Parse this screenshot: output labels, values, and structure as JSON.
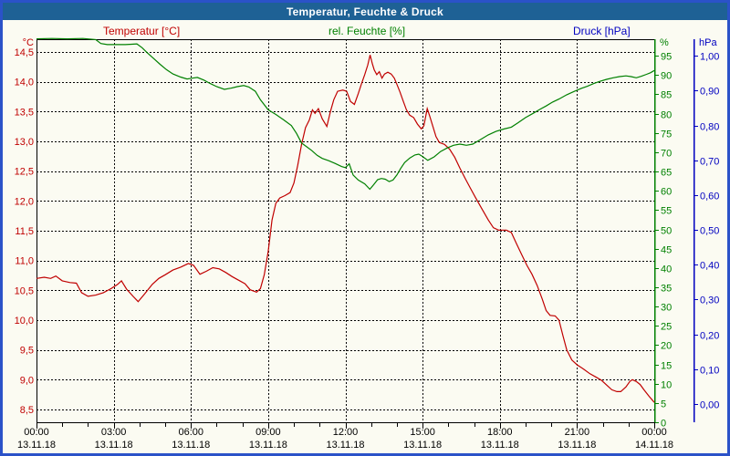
{
  "window": {
    "title": "Temperatur, Feuchte & Druck"
  },
  "legend": {
    "temperature": {
      "label": "Temperatur [°C]",
      "color": "#c00000"
    },
    "humidity": {
      "label": "rel. Feuchte [%]",
      "color": "#008000"
    },
    "pressure": {
      "label": "Druck [hPa]",
      "color": "#0000c0"
    }
  },
  "chart_data": {
    "type": "line",
    "title": "Temperatur, Feuchte & Druck",
    "grid": true,
    "x_axis": {
      "range_hours": [
        0,
        24
      ],
      "minor_tick_hours": 1,
      "major_ticks": [
        {
          "h": 0,
          "time": "00:00",
          "date": "13.11.18"
        },
        {
          "h": 3,
          "time": "03:00",
          "date": "13.11.18"
        },
        {
          "h": 6,
          "time": "06:00",
          "date": "13.11.18"
        },
        {
          "h": 9,
          "time": "09:00",
          "date": "13.11.18"
        },
        {
          "h": 12,
          "time": "12:00",
          "date": "13.11.18"
        },
        {
          "h": 15,
          "time": "15:00",
          "date": "13.11.18"
        },
        {
          "h": 18,
          "time": "18:00",
          "date": "13.11.18"
        },
        {
          "h": 21,
          "time": "21:00",
          "date": "13.11.18"
        },
        {
          "h": 24,
          "time": "00:00",
          "date": "14.11.18"
        }
      ]
    },
    "y_axes": {
      "temperature": {
        "unit_label": "°C",
        "color": "#c00000",
        "side": "left",
        "range": [
          8.2857,
          14.7143
        ],
        "gridlines": true,
        "ticks": [
          {
            "v": 14.5,
            "label": "14,5"
          },
          {
            "v": 14.0,
            "label": "14,0"
          },
          {
            "v": 13.5,
            "label": "13,5"
          },
          {
            "v": 13.0,
            "label": "13,0"
          },
          {
            "v": 12.5,
            "label": "12,5"
          },
          {
            "v": 12.0,
            "label": "12,0"
          },
          {
            "v": 11.5,
            "label": "11,5"
          },
          {
            "v": 11.0,
            "label": "11,0"
          },
          {
            "v": 10.5,
            "label": "10,5"
          },
          {
            "v": 10.0,
            "label": "10,0"
          },
          {
            "v": 9.5,
            "label": "9,5"
          },
          {
            "v": 9.0,
            "label": "9,0"
          },
          {
            "v": 8.5,
            "label": "8,5"
          }
        ]
      },
      "humidity": {
        "unit_label": "%",
        "color": "#008000",
        "side": "right",
        "range": [
          0,
          99.3
        ],
        "gridlines": false,
        "ticks": [
          {
            "v": 95,
            "label": "95"
          },
          {
            "v": 90,
            "label": "90"
          },
          {
            "v": 85,
            "label": "85"
          },
          {
            "v": 80,
            "label": "80"
          },
          {
            "v": 75,
            "label": "75"
          },
          {
            "v": 70,
            "label": "70"
          },
          {
            "v": 65,
            "label": "65"
          },
          {
            "v": 60,
            "label": "60"
          },
          {
            "v": 55,
            "label": "55"
          },
          {
            "v": 50,
            "label": "50"
          },
          {
            "v": 45,
            "label": "45"
          },
          {
            "v": 40,
            "label": "40"
          },
          {
            "v": 35,
            "label": "35"
          },
          {
            "v": 30,
            "label": "30"
          },
          {
            "v": 25,
            "label": "25"
          },
          {
            "v": 20,
            "label": "20"
          },
          {
            "v": 15,
            "label": "15"
          },
          {
            "v": 10,
            "label": "10"
          },
          {
            "v": 5,
            "label": "5"
          },
          {
            "v": 0,
            "label": "0"
          }
        ]
      },
      "pressure": {
        "unit_label": "hPa",
        "color": "#0000c0",
        "side": "far-right",
        "range": [
          -0.0524,
          1.0476
        ],
        "gridlines": false,
        "ticks": [
          {
            "v": 1.0,
            "label": "1,00"
          },
          {
            "v": 0.9,
            "label": "0,90"
          },
          {
            "v": 0.8,
            "label": "0,80"
          },
          {
            "v": 0.7,
            "label": "0,70"
          },
          {
            "v": 0.6,
            "label": "0,60"
          },
          {
            "v": 0.5,
            "label": "0,50"
          },
          {
            "v": 0.4,
            "label": "0,40"
          },
          {
            "v": 0.3,
            "label": "0,30"
          },
          {
            "v": 0.2,
            "label": "0,20"
          },
          {
            "v": 0.1,
            "label": "0,10"
          },
          {
            "v": 0.0,
            "label": "0,00"
          }
        ]
      }
    },
    "series": [
      {
        "name": "Temperatur [°C]",
        "axis": "temperature",
        "color": "#c00000",
        "points": [
          [
            0,
            10.7
          ],
          [
            0.3,
            10.72
          ],
          [
            0.55,
            10.7
          ],
          [
            0.75,
            10.74
          ],
          [
            1.0,
            10.66
          ],
          [
            1.3,
            10.63
          ],
          [
            1.55,
            10.62
          ],
          [
            1.75,
            10.46
          ],
          [
            2.0,
            10.4
          ],
          [
            2.3,
            10.42
          ],
          [
            2.6,
            10.46
          ],
          [
            2.9,
            10.53
          ],
          [
            3.15,
            10.6
          ],
          [
            3.3,
            10.66
          ],
          [
            3.5,
            10.52
          ],
          [
            3.75,
            10.4
          ],
          [
            3.95,
            10.31
          ],
          [
            4.2,
            10.44
          ],
          [
            4.5,
            10.6
          ],
          [
            4.75,
            10.7
          ],
          [
            5.0,
            10.76
          ],
          [
            5.3,
            10.84
          ],
          [
            5.6,
            10.89
          ],
          [
            5.9,
            10.95
          ],
          [
            6.1,
            10.92
          ],
          [
            6.35,
            10.77
          ],
          [
            6.6,
            10.82
          ],
          [
            6.85,
            10.88
          ],
          [
            7.1,
            10.86
          ],
          [
            7.35,
            10.8
          ],
          [
            7.6,
            10.73
          ],
          [
            7.85,
            10.67
          ],
          [
            8.1,
            10.61
          ],
          [
            8.3,
            10.51
          ],
          [
            8.55,
            10.47
          ],
          [
            8.7,
            10.53
          ],
          [
            8.85,
            10.76
          ],
          [
            9.0,
            11.15
          ],
          [
            9.15,
            11.68
          ],
          [
            9.3,
            11.96
          ],
          [
            9.45,
            12.05
          ],
          [
            9.65,
            12.09
          ],
          [
            9.85,
            12.14
          ],
          [
            10.0,
            12.3
          ],
          [
            10.15,
            12.6
          ],
          [
            10.3,
            12.95
          ],
          [
            10.45,
            13.23
          ],
          [
            10.6,
            13.36
          ],
          [
            10.72,
            13.53
          ],
          [
            10.82,
            13.47
          ],
          [
            10.95,
            13.55
          ],
          [
            11.1,
            13.38
          ],
          [
            11.28,
            13.25
          ],
          [
            11.42,
            13.5
          ],
          [
            11.55,
            13.7
          ],
          [
            11.7,
            13.84
          ],
          [
            11.9,
            13.86
          ],
          [
            12.05,
            13.84
          ],
          [
            12.2,
            13.67
          ],
          [
            12.35,
            13.62
          ],
          [
            12.5,
            13.8
          ],
          [
            12.62,
            13.96
          ],
          [
            12.75,
            14.12
          ],
          [
            12.87,
            14.28
          ],
          [
            12.96,
            14.45
          ],
          [
            13.05,
            14.3
          ],
          [
            13.12,
            14.2
          ],
          [
            13.22,
            14.12
          ],
          [
            13.32,
            14.17
          ],
          [
            13.42,
            14.06
          ],
          [
            13.52,
            14.13
          ],
          [
            13.65,
            14.16
          ],
          [
            13.78,
            14.13
          ],
          [
            13.9,
            14.06
          ],
          [
            14.0,
            13.96
          ],
          [
            14.12,
            13.83
          ],
          [
            14.25,
            13.67
          ],
          [
            14.37,
            13.53
          ],
          [
            14.5,
            13.44
          ],
          [
            14.65,
            13.4
          ],
          [
            14.8,
            13.29
          ],
          [
            14.95,
            13.21
          ],
          [
            15.05,
            13.26
          ],
          [
            15.18,
            13.55
          ],
          [
            15.28,
            13.42
          ],
          [
            15.4,
            13.25
          ],
          [
            15.52,
            13.08
          ],
          [
            15.65,
            12.98
          ],
          [
            15.85,
            12.95
          ],
          [
            16.05,
            12.87
          ],
          [
            16.25,
            12.73
          ],
          [
            16.45,
            12.55
          ],
          [
            16.65,
            12.38
          ],
          [
            16.85,
            12.22
          ],
          [
            17.05,
            12.06
          ],
          [
            17.3,
            11.87
          ],
          [
            17.55,
            11.68
          ],
          [
            17.75,
            11.55
          ],
          [
            17.95,
            11.51
          ],
          [
            18.25,
            11.51
          ],
          [
            18.45,
            11.47
          ],
          [
            18.65,
            11.28
          ],
          [
            18.85,
            11.1
          ],
          [
            19.05,
            10.92
          ],
          [
            19.25,
            10.77
          ],
          [
            19.45,
            10.58
          ],
          [
            19.65,
            10.35
          ],
          [
            19.8,
            10.16
          ],
          [
            19.95,
            10.08
          ],
          [
            20.15,
            10.07
          ],
          [
            20.3,
            10.0
          ],
          [
            20.45,
            9.74
          ],
          [
            20.6,
            9.5
          ],
          [
            20.8,
            9.33
          ],
          [
            21.0,
            9.25
          ],
          [
            21.25,
            9.18
          ],
          [
            21.5,
            9.1
          ],
          [
            21.75,
            9.04
          ],
          [
            21.95,
            8.99
          ],
          [
            22.15,
            8.91
          ],
          [
            22.35,
            8.83
          ],
          [
            22.55,
            8.8
          ],
          [
            22.7,
            8.8
          ],
          [
            22.9,
            8.88
          ],
          [
            23.05,
            8.97
          ],
          [
            23.15,
            9.0
          ],
          [
            23.3,
            8.97
          ],
          [
            23.45,
            8.92
          ],
          [
            23.6,
            8.83
          ],
          [
            23.8,
            8.72
          ],
          [
            24,
            8.62
          ]
        ]
      },
      {
        "name": "rel. Feuchte [%]",
        "axis": "humidity",
        "color": "#008000",
        "points": [
          [
            0,
            99.4
          ],
          [
            0.6,
            99.5
          ],
          [
            1.2,
            99.4
          ],
          [
            1.8,
            99.5
          ],
          [
            2.3,
            99.2
          ],
          [
            2.5,
            98.2
          ],
          [
            2.75,
            97.9
          ],
          [
            3.1,
            97.9
          ],
          [
            3.45,
            97.9
          ],
          [
            3.7,
            98.0
          ],
          [
            3.9,
            98.1
          ],
          [
            4.1,
            97.1
          ],
          [
            4.3,
            95.8
          ],
          [
            4.55,
            94.3
          ],
          [
            4.8,
            92.8
          ],
          [
            5.05,
            91.4
          ],
          [
            5.3,
            90.3
          ],
          [
            5.6,
            89.5
          ],
          [
            5.85,
            89.0
          ],
          [
            6.05,
            89.2
          ],
          [
            6.25,
            89.4
          ],
          [
            6.5,
            88.7
          ],
          [
            6.75,
            87.8
          ],
          [
            7.0,
            87.0
          ],
          [
            7.3,
            86.3
          ],
          [
            7.55,
            86.6
          ],
          [
            7.8,
            87.0
          ],
          [
            8.05,
            87.3
          ],
          [
            8.25,
            86.9
          ],
          [
            8.5,
            85.8
          ],
          [
            8.7,
            83.6
          ],
          [
            9.0,
            81.0
          ],
          [
            9.3,
            79.8
          ],
          [
            9.6,
            78.4
          ],
          [
            9.9,
            76.9
          ],
          [
            10.1,
            74.9
          ],
          [
            10.3,
            72.4
          ],
          [
            10.5,
            71.4
          ],
          [
            10.7,
            70.4
          ],
          [
            10.9,
            69.2
          ],
          [
            11.1,
            68.4
          ],
          [
            11.35,
            67.8
          ],
          [
            11.6,
            67.1
          ],
          [
            11.85,
            66.3
          ],
          [
            12.0,
            66.0
          ],
          [
            12.15,
            67.0
          ],
          [
            12.3,
            64.1
          ],
          [
            12.5,
            62.8
          ],
          [
            12.75,
            61.8
          ],
          [
            12.95,
            60.4
          ],
          [
            13.1,
            61.6
          ],
          [
            13.25,
            62.9
          ],
          [
            13.4,
            63.2
          ],
          [
            13.55,
            63.0
          ],
          [
            13.7,
            62.4
          ],
          [
            13.85,
            62.8
          ],
          [
            14.0,
            64.1
          ],
          [
            14.15,
            65.8
          ],
          [
            14.3,
            67.3
          ],
          [
            14.5,
            68.5
          ],
          [
            14.7,
            69.3
          ],
          [
            14.85,
            69.5
          ],
          [
            15.0,
            68.9
          ],
          [
            15.2,
            67.9
          ],
          [
            15.45,
            68.8
          ],
          [
            15.7,
            70.2
          ],
          [
            15.95,
            71.1
          ],
          [
            16.2,
            71.8
          ],
          [
            16.45,
            72.1
          ],
          [
            16.7,
            71.8
          ],
          [
            16.95,
            72.1
          ],
          [
            17.25,
            73.3
          ],
          [
            17.55,
            74.5
          ],
          [
            17.85,
            75.4
          ],
          [
            18.15,
            76.0
          ],
          [
            18.45,
            76.5
          ],
          [
            18.7,
            77.6
          ],
          [
            19.0,
            79.0
          ],
          [
            19.3,
            80.1
          ],
          [
            19.55,
            81.1
          ],
          [
            19.8,
            82.0
          ],
          [
            20.05,
            83.0
          ],
          [
            20.3,
            83.8
          ],
          [
            20.6,
            84.9
          ],
          [
            20.9,
            85.8
          ],
          [
            21.15,
            86.5
          ],
          [
            21.4,
            87.1
          ],
          [
            21.65,
            87.8
          ],
          [
            21.9,
            88.4
          ],
          [
            22.15,
            88.9
          ],
          [
            22.4,
            89.3
          ],
          [
            22.65,
            89.6
          ],
          [
            22.9,
            89.8
          ],
          [
            23.1,
            89.6
          ],
          [
            23.3,
            89.3
          ],
          [
            23.5,
            89.7
          ],
          [
            23.7,
            90.2
          ],
          [
            23.85,
            90.6
          ],
          [
            24,
            91.2
          ]
        ]
      },
      {
        "name": "Druck [hPa]",
        "axis": "pressure",
        "color": "#0000c0",
        "points": []
      }
    ]
  }
}
